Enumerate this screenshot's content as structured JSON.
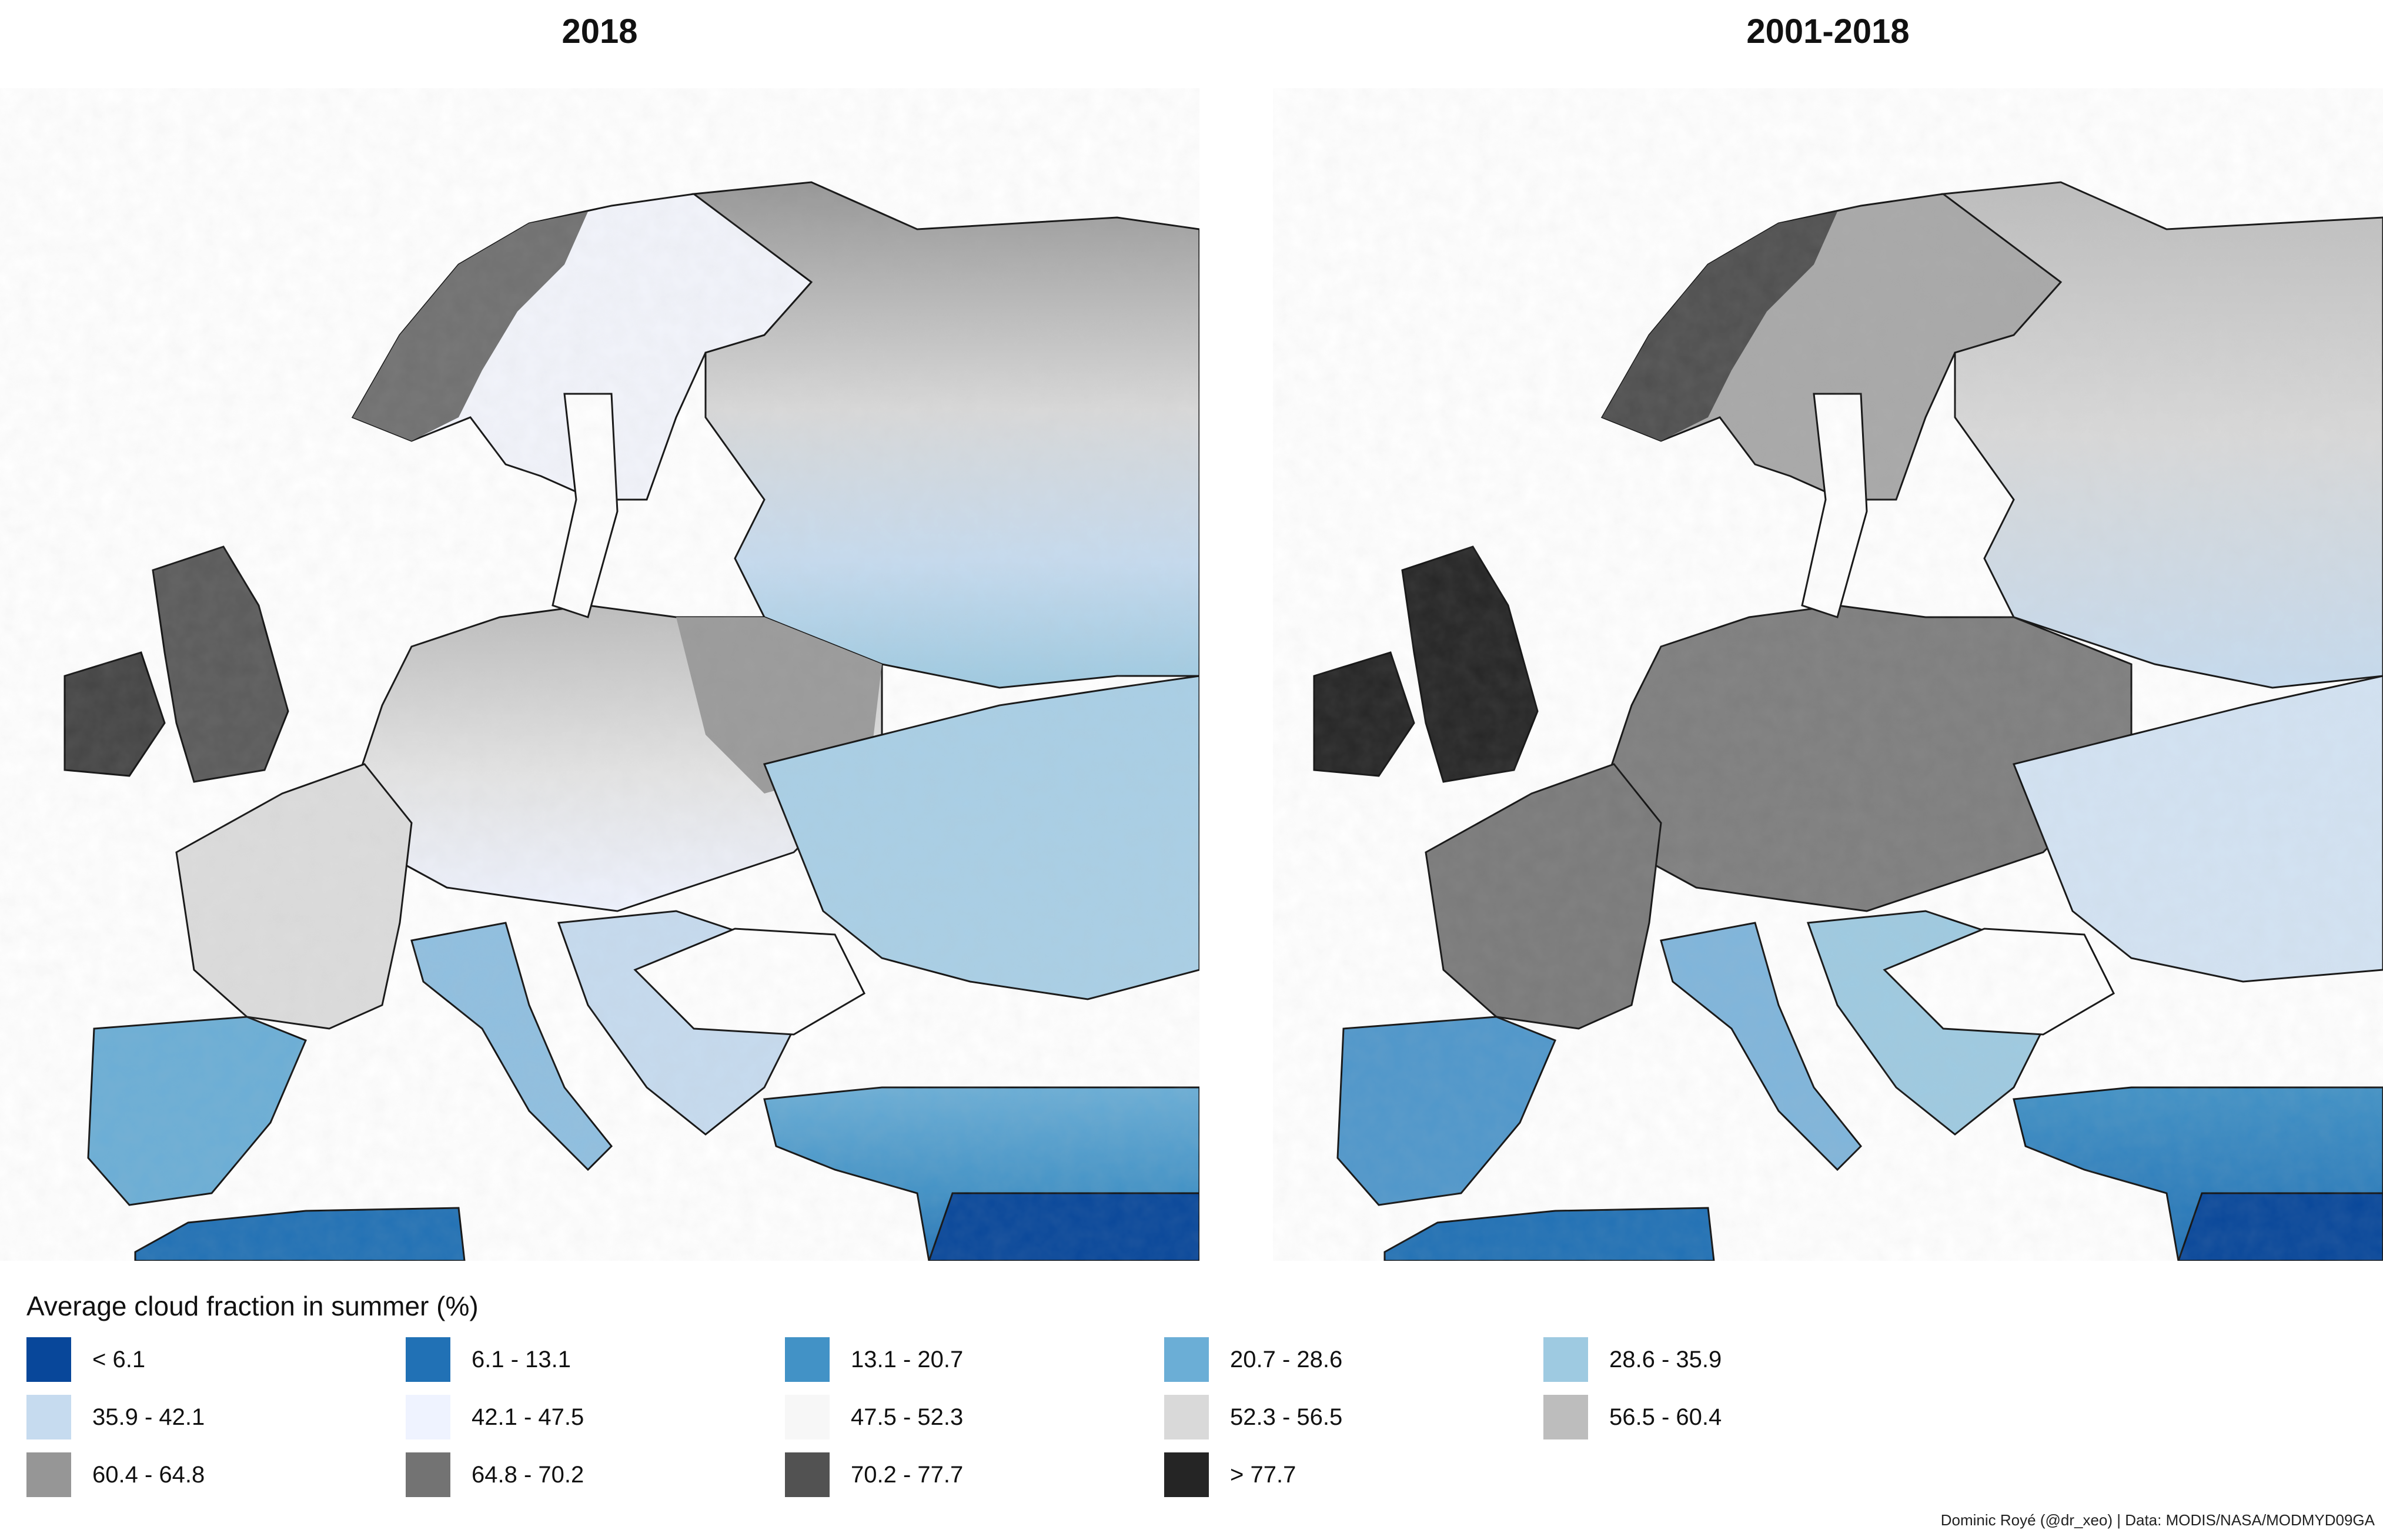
{
  "panels": [
    {
      "title": "2018"
    },
    {
      "title": "2001-2018"
    }
  ],
  "legend": {
    "title": "Average cloud fraction in summer (%)",
    "items": [
      {
        "label": "< 6.1",
        "color": "#08479A"
      },
      {
        "label": "6.1 - 13.1",
        "color": "#2171B5"
      },
      {
        "label": "13.1 - 20.7",
        "color": "#4292C6"
      },
      {
        "label": "20.7 - 28.6",
        "color": "#6BAED6"
      },
      {
        "label": "28.6 - 35.9",
        "color": "#9ECAE1"
      },
      {
        "label": "35.9 - 42.1",
        "color": "#C6DBEF"
      },
      {
        "label": "42.1 - 47.5",
        "color": "#EFF3FF"
      },
      {
        "label": "47.5 - 52.3",
        "color": "#F7F7F7"
      },
      {
        "label": "52.3 - 56.5",
        "color": "#D9D9D9"
      },
      {
        "label": "56.5 - 60.4",
        "color": "#BDBDBD"
      },
      {
        "label": "60.4 - 64.8",
        "color": "#969696"
      },
      {
        "label": "64.8 - 70.2",
        "color": "#737373"
      },
      {
        "label": "70.2 - 77.7",
        "color": "#525252"
      },
      {
        "label": "> 77.7",
        "color": "#252525"
      }
    ]
  },
  "credit": "Dominic Royé (@dr_xeo) | Data: MODIS/NASA/MODMYD09GA"
}
